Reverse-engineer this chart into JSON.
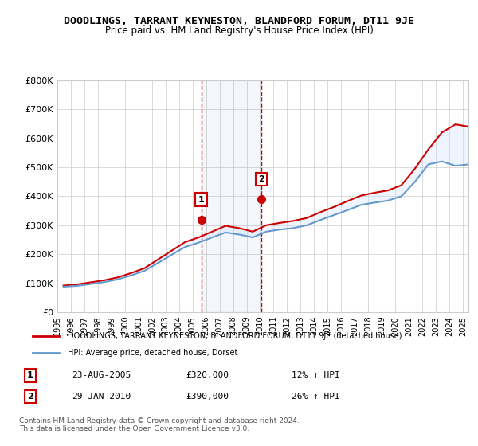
{
  "title": "DOODLINGS, TARRANT KEYNESTON, BLANDFORD FORUM, DT11 9JE",
  "subtitle": "Price paid vs. HM Land Registry's House Price Index (HPI)",
  "ylabel_ticks": [
    "£0",
    "£100K",
    "£200K",
    "£300K",
    "£400K",
    "£500K",
    "£600K",
    "£700K",
    "£800K"
  ],
  "ytick_values": [
    0,
    100000,
    200000,
    300000,
    400000,
    500000,
    600000,
    700000,
    800000
  ],
  "ylim": [
    0,
    800000
  ],
  "legend_line1": "DOODLINGS, TARRANT KEYNESTON, BLANDFORD FORUM, DT11 9JE (detached house)",
  "legend_line2": "HPI: Average price, detached house, Dorset",
  "annotation1_label": "1",
  "annotation1_date": "2005-08-23",
  "annotation1_price": 320000,
  "annotation1_text": "23-AUG-2005",
  "annotation1_amount": "£320,000",
  "annotation1_hpi": "12% ↑ HPI",
  "annotation2_label": "2",
  "annotation2_date": "2010-01-29",
  "annotation2_price": 390000,
  "annotation2_text": "29-JAN-2010",
  "annotation2_amount": "£390,000",
  "annotation2_hpi": "26% ↑ HPI",
  "line_color_red": "#cc0000",
  "line_color_blue": "#6699cc",
  "vline_color": "#cc0000",
  "fill_color": "#cce0ff",
  "grid_color": "#cccccc",
  "background_color": "#ffffff",
  "footer": "Contains HM Land Registry data © Crown copyright and database right 2024.\nThis data is licensed under the Open Government Licence v3.0.",
  "hpi_years": [
    1995,
    1996,
    1997,
    1998,
    1999,
    2000,
    2001,
    2002,
    2003,
    2004,
    2005,
    2006,
    2007,
    2008,
    2009,
    2010,
    2011,
    2012,
    2013,
    2014,
    2015,
    2016,
    2017,
    2018,
    2019,
    2020,
    2021,
    2022,
    2023,
    2024,
    2025
  ],
  "hpi_values": [
    88000,
    91000,
    97000,
    104000,
    113000,
    127000,
    143000,
    170000,
    198000,
    225000,
    240000,
    258000,
    275000,
    268000,
    258000,
    278000,
    285000,
    290000,
    300000,
    318000,
    335000,
    352000,
    370000,
    378000,
    385000,
    400000,
    450000,
    510000,
    520000,
    505000,
    510000
  ],
  "red_years": [
    1995,
    1996,
    1997,
    1998,
    1999,
    2000,
    2001,
    2002,
    2003,
    2004,
    2005,
    2006,
    2007,
    2008,
    2009,
    2010,
    2011,
    2012,
    2013,
    2014,
    2015,
    2016,
    2017,
    2018,
    2019,
    2020,
    2021,
    2022,
    2023,
    2024,
    2025
  ],
  "red_values": [
    92000,
    96000,
    103000,
    110000,
    120000,
    135000,
    152000,
    182000,
    212000,
    242000,
    258000,
    278000,
    298000,
    290000,
    278000,
    300000,
    308000,
    315000,
    325000,
    345000,
    363000,
    383000,
    402000,
    412000,
    420000,
    438000,
    495000,
    562000,
    620000,
    648000,
    640000
  ]
}
